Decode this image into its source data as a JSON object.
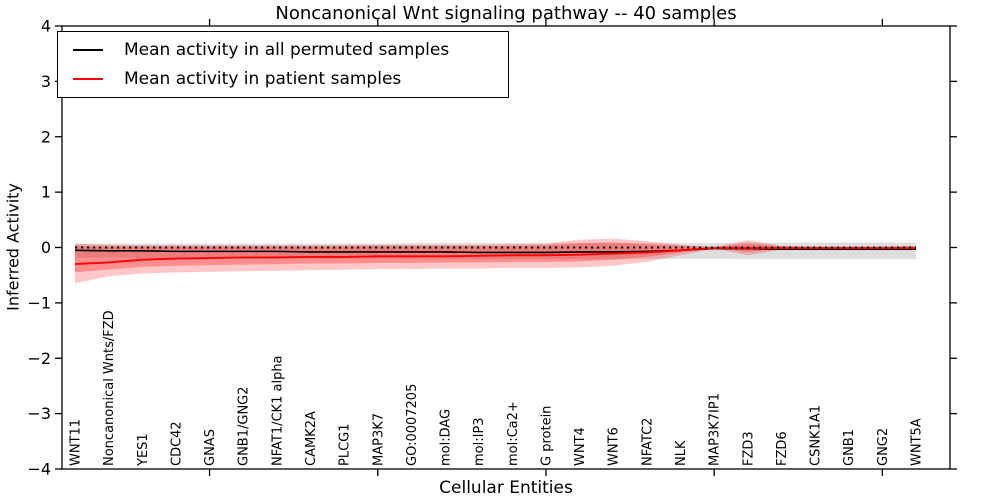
{
  "legend": {
    "position": "upper left",
    "items": [
      {
        "label": "Mean activity in all permuted samples",
        "color": "#000000"
      },
      {
        "label": "Mean activity in patient samples",
        "color": "#ff0000"
      }
    ]
  },
  "chart_data": {
    "type": "line",
    "title": "Noncanonical Wnt signaling pathway -- 40 samples",
    "xlabel": "Cellular Entities",
    "ylabel": "Inferred Activity",
    "ylim": [
      -4,
      4
    ],
    "yticks": [
      4,
      3,
      2,
      1,
      0,
      -1,
      -2,
      -3,
      -4
    ],
    "xtick_indices": [
      4,
      9,
      14,
      19,
      24
    ],
    "grid": false,
    "legend_position": "upper left",
    "reference_line": {
      "y": 0,
      "style": "dotted",
      "color": "#000000"
    },
    "categories": [
      "WNT11",
      "Noncanonical Wnts/FZD",
      "YES1",
      "CDC42",
      "GNAS",
      "GNB1/GNG2",
      "NFAT1/CK1 alpha",
      "CAMK2A",
      "PLCG1",
      "MAP3K7",
      "GO:0007205",
      "mol:DAG",
      "mol:IP3",
      "mol:Ca2+",
      "G protein",
      "WNT4",
      "WNT6",
      "NFATC2",
      "NLK",
      "MAP3K7IP1",
      "FZD3",
      "FZD6",
      "CSNK1A1",
      "GNB1",
      "GNG2",
      "WNT5A"
    ],
    "series": [
      {
        "name": "Mean activity in all permuted samples",
        "color": "#000000",
        "values": [
          -0.05,
          -0.06,
          -0.06,
          -0.07,
          -0.07,
          -0.07,
          -0.07,
          -0.08,
          -0.08,
          -0.08,
          -0.08,
          -0.08,
          -0.09,
          -0.09,
          -0.09,
          -0.08,
          -0.08,
          -0.07,
          -0.05,
          -0.02,
          -0.02,
          -0.03,
          -0.03,
          -0.03,
          -0.03,
          -0.03
        ]
      },
      {
        "name": "Mean activity in patient samples",
        "color": "#ff0000",
        "values": [
          -0.3,
          -0.27,
          -0.22,
          -0.2,
          -0.19,
          -0.18,
          -0.18,
          -0.17,
          -0.17,
          -0.16,
          -0.16,
          -0.16,
          -0.15,
          -0.14,
          -0.14,
          -0.13,
          -0.11,
          -0.09,
          -0.05,
          -0.01,
          -0.01,
          -0.01,
          -0.01,
          -0.01,
          -0.01,
          -0.01
        ]
      }
    ],
    "bands": [
      {
        "name": "permuted-samples-range",
        "color": "#000000",
        "opacity": 0.13,
        "upper": [
          0.07,
          0.07,
          0.07,
          0.07,
          0.07,
          0.07,
          0.07,
          0.07,
          0.07,
          0.07,
          0.08,
          0.08,
          0.08,
          0.08,
          0.08,
          0.08,
          0.08,
          0.08,
          0.08,
          0.08,
          0.09,
          0.09,
          0.09,
          0.09,
          0.09,
          0.09
        ],
        "lower": [
          -0.18,
          -0.18,
          -0.19,
          -0.19,
          -0.19,
          -0.2,
          -0.2,
          -0.2,
          -0.2,
          -0.2,
          -0.21,
          -0.21,
          -0.21,
          -0.21,
          -0.21,
          -0.21,
          -0.21,
          -0.21,
          -0.2,
          -0.2,
          -0.21,
          -0.21,
          -0.21,
          -0.21,
          -0.21,
          -0.21
        ]
      },
      {
        "name": "patient-samples-range-outer",
        "color": "#ff0000",
        "opacity": 0.22,
        "upper": [
          0.07,
          0.05,
          0.04,
          0.04,
          0.04,
          0.04,
          0.04,
          0.04,
          0.05,
          0.05,
          0.05,
          0.05,
          0.05,
          0.06,
          0.07,
          0.14,
          0.16,
          0.11,
          0.05,
          0.01,
          0.13,
          0.03,
          0.02,
          0.02,
          0.02,
          0.03
        ],
        "lower": [
          -0.65,
          -0.52,
          -0.47,
          -0.45,
          -0.44,
          -0.43,
          -0.42,
          -0.41,
          -0.4,
          -0.39,
          -0.39,
          -0.38,
          -0.38,
          -0.37,
          -0.37,
          -0.36,
          -0.33,
          -0.26,
          -0.14,
          -0.02,
          -0.14,
          -0.04,
          -0.03,
          -0.03,
          -0.03,
          -0.04
        ]
      },
      {
        "name": "patient-samples-range-inner",
        "color": "#ff0000",
        "opacity": 0.28,
        "upper": [
          0.03,
          0.02,
          0.02,
          0.02,
          0.02,
          0.02,
          0.02,
          0.02,
          0.02,
          0.03,
          0.03,
          0.03,
          0.03,
          0.03,
          0.04,
          0.08,
          0.09,
          0.06,
          0.03,
          0.01,
          0.07,
          0.02,
          0.01,
          0.01,
          0.01,
          0.02
        ],
        "lower": [
          -0.45,
          -0.4,
          -0.35,
          -0.33,
          -0.32,
          -0.31,
          -0.3,
          -0.29,
          -0.29,
          -0.28,
          -0.28,
          -0.27,
          -0.27,
          -0.26,
          -0.26,
          -0.25,
          -0.22,
          -0.17,
          -0.09,
          -0.015,
          -0.08,
          -0.03,
          -0.02,
          -0.02,
          -0.02,
          -0.03
        ]
      }
    ]
  }
}
